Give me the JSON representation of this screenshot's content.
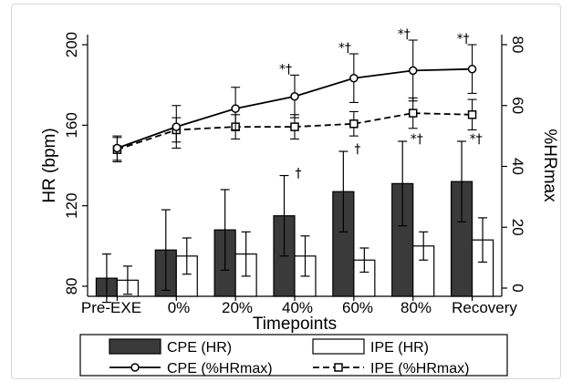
{
  "chart_data": {
    "type": "bar",
    "categories": [
      "Pre-EXE",
      "0%",
      "20%",
      "40%",
      "60%",
      "80%",
      "Recovery"
    ],
    "xlabel": "Timepoints",
    "ylabel": "HR (bpm)",
    "y2label": "%HRmax",
    "ylim": [
      75,
      205
    ],
    "y2lim": [
      -2.7,
      83.3
    ],
    "yticks": [
      80,
      120,
      160,
      200
    ],
    "y2ticks": [
      0,
      20,
      40,
      60,
      80
    ],
    "bar_series": [
      {
        "name": "CPE (HR)",
        "color": "#3a3a3a",
        "values": [
          84,
          98,
          108,
          115,
          127,
          131,
          132
        ],
        "errors": [
          12,
          20,
          20,
          20,
          20,
          21,
          20
        ]
      },
      {
        "name": "IPE (HR)",
        "color": "#ffffff",
        "values": [
          83,
          95,
          96,
          95,
          93,
          100,
          103
        ],
        "errors": [
          7,
          9,
          11,
          10,
          6,
          7,
          11
        ]
      }
    ],
    "line_series": [
      {
        "name": "CPE (%HRmax)",
        "marker": "circle",
        "dash": "solid",
        "values": [
          46,
          53,
          59,
          63,
          69,
          71.5,
          72
        ],
        "errors": [
          4,
          7,
          7,
          7,
          8,
          10,
          8
        ]
      },
      {
        "name": "IPE (%HRmax)",
        "marker": "square",
        "dash": "dashed",
        "values": [
          45.5,
          52,
          53,
          53,
          54,
          57.5,
          57
        ],
        "errors": [
          4,
          4,
          4,
          4,
          4,
          5,
          5
        ]
      }
    ],
    "annotations": [
      {
        "category": "40%",
        "text": "*†",
        "target": "CPE (%HRmax)"
      },
      {
        "category": "60%",
        "text": "*†",
        "target": "CPE (%HRmax)"
      },
      {
        "category": "80%",
        "text": "*†",
        "target": "CPE (%HRmax)"
      },
      {
        "category": "Recovery",
        "text": "*†",
        "target": "CPE (%HRmax)"
      },
      {
        "category": "40%",
        "text": "†",
        "target": "CPE (HR)"
      },
      {
        "category": "60%",
        "text": "†",
        "target": "CPE (HR)"
      },
      {
        "category": "80%",
        "text": "*†",
        "target": "CPE (HR)"
      },
      {
        "category": "Recovery",
        "text": "*†",
        "target": "CPE (HR)"
      }
    ],
    "grid": false,
    "legend_position": "bottom"
  }
}
